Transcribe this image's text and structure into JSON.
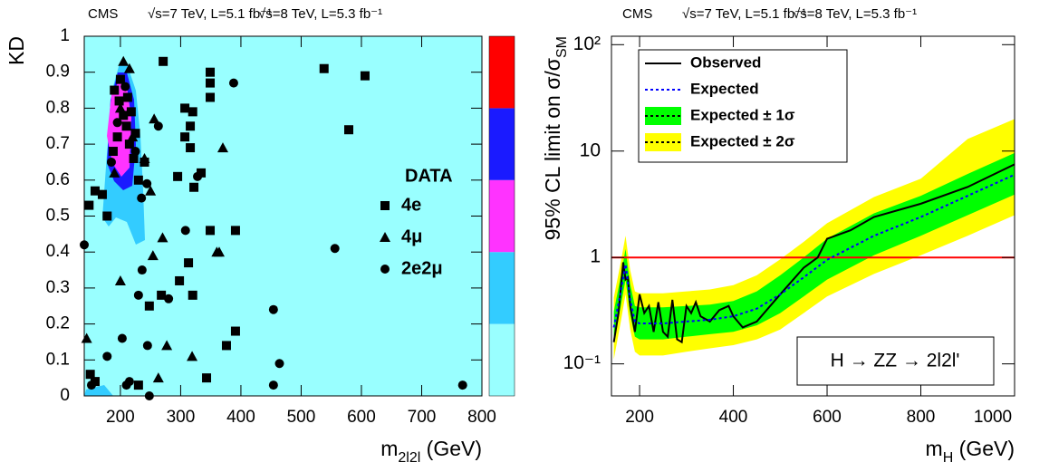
{
  "chart_data": [
    {
      "type": "scatter",
      "header": [
        "CMS",
        "√s=7 TeV, L=5.1 fb⁻¹",
        "√s=8 TeV, L=5.3 fb⁻¹"
      ],
      "ylabel": "KD",
      "xlabel": [
        "m",
        "2l2l",
        " (GeV)"
      ],
      "legend_title": "DATA",
      "background": "#99ffff",
      "colorbar_colors": [
        "#99ffff",
        "#33ccff",
        "#ff33ff",
        "#1a1aff",
        "#ff0000"
      ],
      "xlim": [
        140,
        800
      ],
      "xticks": [
        200,
        300,
        400,
        500,
        600,
        700,
        800
      ],
      "ylim": [
        0,
        1
      ],
      "yticks": [
        0,
        0.1,
        0.2,
        0.3,
        0.4,
        0.5,
        0.6,
        0.7,
        0.8,
        0.9,
        1
      ],
      "series": [
        {
          "name": "4e",
          "marker": "square",
          "color": "#000000",
          "x": [
            538,
            606,
            579,
            271,
            307,
            320,
            316,
            307,
            316,
            295,
            322,
            334,
            349,
            349,
            349,
            349,
            391,
            391,
            376,
            343,
            320,
            313,
            298,
            268,
            248,
            158,
            148,
            190,
            198,
            205,
            210,
            195,
            215,
            222,
            188,
            230,
            200,
            212,
            218,
            225,
            240,
            170,
            178,
            230,
            158,
            150
          ],
          "values": [
            0.91,
            0.89,
            0.74,
            0.93,
            0.8,
            0.79,
            0.75,
            0.72,
            0.69,
            0.61,
            0.58,
            0.62,
            0.9,
            0.87,
            0.83,
            0.46,
            0.46,
            0.18,
            0.14,
            0.05,
            0.28,
            0.37,
            0.32,
            0.28,
            0.25,
            0.57,
            0.53,
            0.85,
            0.82,
            0.78,
            0.75,
            0.72,
            0.7,
            0.66,
            0.68,
            0.6,
            0.88,
            0.83,
            0.79,
            0.73,
            0.65,
            0.56,
            0.5,
            0.03,
            0.04,
            0.06
          ]
        },
        {
          "name": "4μ",
          "marker": "triangle",
          "color": "#000000",
          "x": [
            370,
            256,
            200,
            277,
            319,
            364,
            254,
            144,
            263,
            205,
            215,
            200,
            220,
            240,
            190,
            250,
            360,
            270
          ],
          "values": [
            0.69,
            0.77,
            0.32,
            0.14,
            0.11,
            0.4,
            0.39,
            0.16,
            0.05,
            0.93,
            0.91,
            0.8,
            0.72,
            0.66,
            0.62,
            0.57,
            0.4,
            0.44
          ]
        },
        {
          "name": "2e2μ",
          "marker": "circle",
          "color": "#000000",
          "x": [
            388,
            328,
            308,
            556,
            454,
            464,
            768,
            454,
            263,
            244,
            245,
            236,
            230,
            280,
            203,
            178,
            140,
            152,
            248,
            195,
            208,
            225,
            185,
            235,
            210,
            215
          ],
          "values": [
            0.87,
            0.61,
            0.46,
            0.41,
            0.24,
            0.09,
            0.03,
            0.03,
            0.75,
            0.59,
            0.14,
            0.35,
            0.28,
            0.27,
            0.16,
            0.11,
            0.42,
            0.03,
            0.0,
            0.76,
            0.86,
            0.68,
            0.65,
            0.55,
            0.03,
            0.04
          ]
        }
      ]
    },
    {
      "type": "limit",
      "header": [
        "CMS",
        "√s=7 TeV, L=5.1 fb⁻¹",
        "√s=8 TeV, L=5.3 fb⁻¹"
      ],
      "ylabel": [
        "95% CL limit on σ/σ",
        "SM"
      ],
      "xlabel": [
        "m",
        "H",
        " (GeV)"
      ],
      "annotation": "H → ZZ → 2l2l'",
      "log_y": true,
      "reference_line": 1,
      "reference_color": "#ff0000",
      "xlim": [
        140,
        1000
      ],
      "xticks": [
        200,
        400,
        600,
        800,
        1000
      ],
      "ylim": [
        0.05,
        120
      ],
      "yticks": [
        {
          "value": 0.1,
          "label": "10⁻¹"
        },
        1,
        10,
        {
          "value": 100,
          "label": "10²"
        }
      ],
      "x": [
        145,
        160,
        170,
        180,
        190,
        200,
        250,
        300,
        350,
        400,
        450,
        500,
        550,
        600,
        700,
        800,
        900,
        1000
      ],
      "series": [
        {
          "name": "Observed",
          "color": "#000000",
          "x": [
            145,
            155,
            165,
            170,
            175,
            180,
            190,
            200,
            210,
            220,
            230,
            240,
            250,
            260,
            270,
            280,
            290,
            300,
            310,
            320,
            330,
            350,
            370,
            390,
            400,
            420,
            450,
            500,
            550,
            580,
            600,
            650,
            700,
            800,
            900,
            1000
          ],
          "values": [
            0.16,
            0.3,
            0.9,
            0.62,
            0.65,
            0.35,
            0.2,
            0.45,
            0.3,
            0.35,
            0.2,
            0.38,
            0.2,
            0.18,
            0.4,
            0.17,
            0.16,
            0.35,
            0.3,
            0.38,
            0.28,
            0.25,
            0.32,
            0.35,
            0.28,
            0.22,
            0.25,
            0.45,
            0.8,
            1.0,
            1.5,
            1.8,
            2.4,
            3.2,
            4.6,
            7.5
          ]
        },
        {
          "name": "Expected",
          "color": "#0000ff",
          "values": [
            0.22,
            0.48,
            0.86,
            0.4,
            0.25,
            0.24,
            0.24,
            0.25,
            0.26,
            0.28,
            0.33,
            0.45,
            0.65,
            0.95,
            1.6,
            2.4,
            3.8,
            6.0
          ]
        },
        {
          "name": "Expected ± 1σ",
          "color": "#00ff00",
          "upper": [
            0.31,
            0.67,
            1.2,
            0.56,
            0.35,
            0.34,
            0.34,
            0.35,
            0.36,
            0.39,
            0.48,
            0.68,
            1.0,
            1.5,
            2.6,
            3.8,
            6.1,
            9.6
          ],
          "lower": [
            0.16,
            0.35,
            0.62,
            0.29,
            0.18,
            0.17,
            0.17,
            0.18,
            0.19,
            0.2,
            0.23,
            0.3,
            0.43,
            0.62,
            1.05,
            1.6,
            2.5,
            3.9
          ]
        },
        {
          "name": "Expected ± 2σ",
          "color": "#ffff00",
          "upper": [
            0.42,
            0.91,
            1.6,
            0.76,
            0.48,
            0.46,
            0.46,
            0.48,
            0.5,
            0.55,
            0.68,
            0.96,
            1.4,
            2.1,
            3.7,
            5.5,
            13,
            20
          ],
          "lower": [
            0.11,
            0.25,
            0.45,
            0.21,
            0.13,
            0.12,
            0.12,
            0.13,
            0.14,
            0.15,
            0.17,
            0.21,
            0.3,
            0.43,
            0.7,
            1.05,
            1.6,
            2.5
          ]
        }
      ]
    }
  ]
}
